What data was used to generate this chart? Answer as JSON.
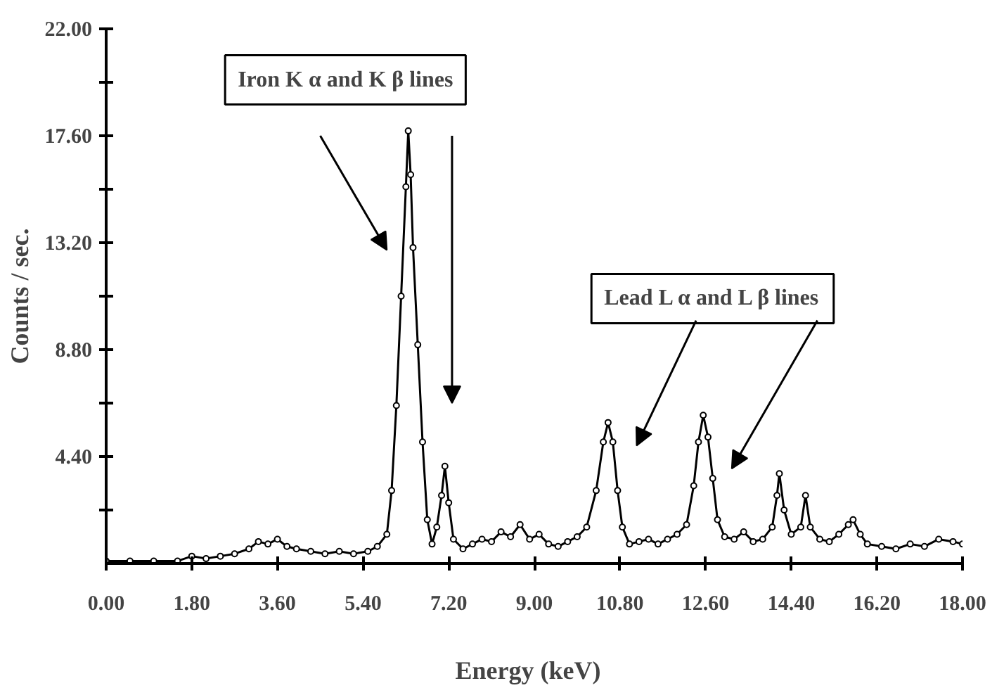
{
  "chart_data": {
    "type": "line",
    "xlabel": "Energy   (keV)",
    "ylabel": "Counts / sec.",
    "annotations": [
      "Iron K α and K β lines",
      "Lead L α and L β lines"
    ],
    "marker": "circle",
    "line_style": "solid",
    "xlim": [
      0,
      18
    ],
    "ylim": [
      0,
      22
    ],
    "xticks": [
      {
        "value": 0,
        "label": "0.00"
      },
      {
        "value": 1.8,
        "label": "1.80"
      },
      {
        "value": 3.6,
        "label": "3.60"
      },
      {
        "value": 5.4,
        "label": "5.40"
      },
      {
        "value": 7.2,
        "label": "7.20"
      },
      {
        "value": 9,
        "label": "9.00"
      },
      {
        "value": 10.8,
        "label": "10.80"
      },
      {
        "value": 12.6,
        "label": "12.60"
      },
      {
        "value": 14.4,
        "label": "14.40"
      },
      {
        "value": 16.2,
        "label": "16.20"
      },
      {
        "value": 18,
        "label": "18.00"
      }
    ],
    "yticks": [
      {
        "value": 2.2,
        "label": null
      },
      {
        "value": 4.4,
        "label": "4.40"
      },
      {
        "value": 6.6,
        "label": null
      },
      {
        "value": 8.8,
        "label": "8.80"
      },
      {
        "value": 11,
        "label": null
      },
      {
        "value": 13.2,
        "label": "13.20"
      },
      {
        "value": 15.4,
        "label": null
      },
      {
        "value": 17.6,
        "label": "17.60"
      },
      {
        "value": 19.8,
        "label": null
      },
      {
        "value": 22,
        "label": "22.00"
      }
    ],
    "x": [
      0,
      0.5,
      1.0,
      1.5,
      1.8,
      2.1,
      2.4,
      2.7,
      3.0,
      3.2,
      3.4,
      3.6,
      3.8,
      4.0,
      4.3,
      4.6,
      4.9,
      5.2,
      5.5,
      5.7,
      5.9,
      6.0,
      6.1,
      6.2,
      6.3,
      6.35,
      6.4,
      6.45,
      6.55,
      6.65,
      6.75,
      6.85,
      6.95,
      7.05,
      7.12,
      7.2,
      7.3,
      7.5,
      7.7,
      7.9,
      8.1,
      8.3,
      8.5,
      8.7,
      8.9,
      9.1,
      9.3,
      9.5,
      9.7,
      9.9,
      10.1,
      10.3,
      10.45,
      10.55,
      10.65,
      10.75,
      10.85,
      11.0,
      11.2,
      11.4,
      11.6,
      11.8,
      12.0,
      12.2,
      12.35,
      12.45,
      12.55,
      12.65,
      12.75,
      12.85,
      13.0,
      13.2,
      13.4,
      13.6,
      13.8,
      14.0,
      14.1,
      14.15,
      14.25,
      14.4,
      14.6,
      14.7,
      14.8,
      15.0,
      15.2,
      15.4,
      15.6,
      15.7,
      15.85,
      16.0,
      16.3,
      16.6,
      16.9,
      17.2,
      17.5,
      17.8,
      18.0
    ],
    "series": [
      {
        "color": "#000000",
        "values": [
          0.1,
          0.1,
          0.1,
          0.1,
          0.3,
          0.2,
          0.3,
          0.4,
          0.6,
          0.9,
          0.8,
          1.0,
          0.7,
          0.6,
          0.5,
          0.4,
          0.5,
          0.4,
          0.5,
          0.7,
          1.2,
          3.0,
          6.5,
          11.0,
          15.5,
          17.8,
          16.0,
          13.0,
          9.0,
          5.0,
          1.8,
          0.8,
          1.5,
          2.8,
          4.0,
          2.5,
          1.0,
          0.6,
          0.8,
          1.0,
          0.9,
          1.3,
          1.1,
          1.6,
          1.0,
          1.2,
          0.8,
          0.7,
          0.9,
          1.1,
          1.5,
          3.0,
          5.0,
          5.8,
          5.0,
          3.0,
          1.5,
          0.8,
          0.9,
          1.0,
          0.8,
          1.0,
          1.2,
          1.6,
          3.2,
          5.0,
          6.1,
          5.2,
          3.5,
          1.8,
          1.1,
          1.0,
          1.3,
          0.9,
          1.0,
          1.5,
          2.8,
          3.7,
          2.2,
          1.2,
          1.5,
          2.8,
          1.5,
          1.0,
          0.9,
          1.2,
          1.6,
          1.8,
          1.2,
          0.8,
          0.7,
          0.6,
          0.8,
          0.7,
          1.0,
          0.9,
          0.8
        ]
      }
    ]
  }
}
